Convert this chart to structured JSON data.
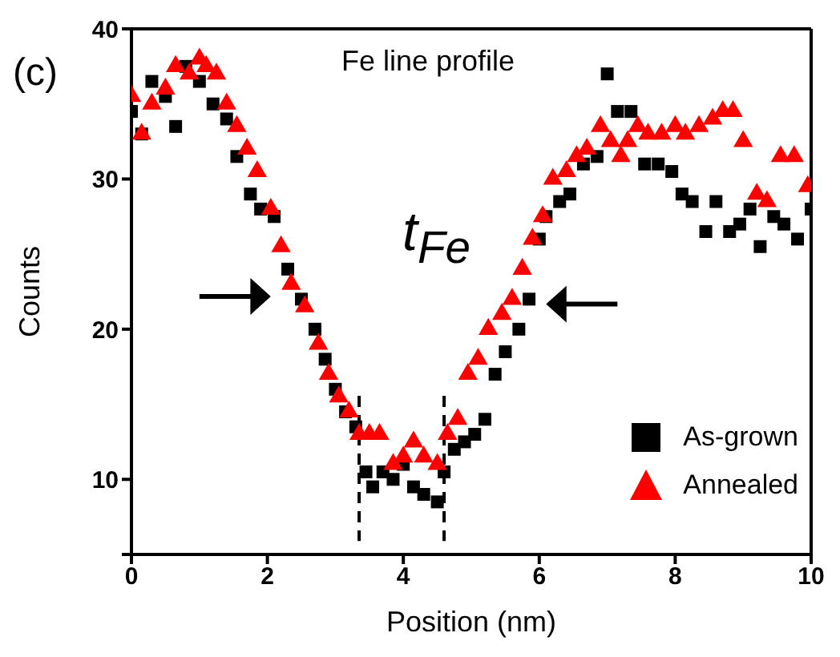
{
  "chart_data": {
    "type": "scatter",
    "xlabel": "Position (nm)",
    "ylabel": "Counts",
    "xlim": [
      0,
      10
    ],
    "ylim": [
      5,
      40
    ],
    "xticks": [
      0,
      2,
      4,
      6,
      8,
      10
    ],
    "yticks": [
      {
        "value": 5,
        "label": null
      },
      10,
      20,
      30,
      40
    ],
    "grid": false,
    "legend": "right",
    "annotations": [
      "(c)",
      "Fe line profile",
      "t$_{Fe}$"
    ],
    "series": [
      {
        "name": "As-grown",
        "color": "#000000",
        "marker": "square",
        "x": [
          0,
          0.15,
          0.3,
          0.5,
          0.65,
          0.8,
          1.0,
          1.2,
          1.4,
          1.55,
          1.75,
          1.9,
          2.1,
          2.3,
          2.5,
          2.7,
          2.85,
          3.0,
          3.15,
          3.3,
          3.45,
          3.55,
          3.7,
          3.85,
          4.0,
          4.15,
          4.3,
          4.5,
          4.6,
          4.75,
          4.9,
          5.05,
          5.2,
          5.35,
          5.5,
          5.7,
          5.85,
          6.0,
          6.1,
          6.3,
          6.45,
          6.65,
          6.85,
          7.0,
          7.15,
          7.35,
          7.55,
          7.75,
          7.95,
          8.1,
          8.25,
          8.45,
          8.6,
          8.8,
          8.95,
          9.1,
          9.25,
          9.45,
          9.6,
          9.8,
          10.0
        ],
        "values": [
          34.5,
          33,
          36.5,
          35.5,
          33.5,
          37.5,
          36.5,
          35,
          34,
          31.5,
          29,
          28,
          27.5,
          24,
          22,
          20,
          18,
          16,
          14.5,
          13.5,
          10.5,
          9.5,
          10.5,
          10,
          11,
          9.5,
          9,
          8.5,
          10.5,
          12,
          12.5,
          13,
          14,
          17,
          18.5,
          20,
          22,
          26,
          27.5,
          28.5,
          29,
          31,
          31.5,
          37,
          34.5,
          34.5,
          31,
          31,
          30.5,
          29,
          28.5,
          26.5,
          28.5,
          26.5,
          27,
          28,
          25.5,
          27.5,
          27,
          26,
          28
        ]
      },
      {
        "name": "Annealed",
        "color": "#ff0000",
        "marker": "triangle",
        "x": [
          0,
          0.15,
          0.3,
          0.5,
          0.65,
          0.85,
          1.0,
          1.1,
          1.25,
          1.4,
          1.55,
          1.7,
          1.85,
          2.05,
          2.2,
          2.35,
          2.55,
          2.75,
          2.9,
          3.05,
          3.2,
          3.35,
          3.5,
          3.65,
          3.85,
          4.0,
          4.15,
          4.3,
          4.5,
          4.65,
          4.8,
          4.95,
          5.1,
          5.25,
          5.45,
          5.6,
          5.75,
          5.9,
          6.05,
          6.2,
          6.4,
          6.55,
          6.7,
          6.9,
          7.05,
          7.2,
          7.3,
          7.45,
          7.6,
          7.8,
          8.0,
          8.15,
          8.35,
          8.55,
          8.7,
          8.85,
          9.0,
          9.2,
          9.35,
          9.55,
          9.75,
          9.95
        ],
        "values": [
          35.5,
          33,
          35,
          36,
          37.5,
          37,
          38,
          37.5,
          37,
          35,
          33.5,
          32,
          30.5,
          28,
          25.5,
          23,
          21.5,
          19,
          17,
          15.5,
          14.5,
          13,
          13,
          13,
          11,
          11.5,
          12.5,
          11.5,
          11,
          13,
          14,
          17,
          18,
          20,
          21,
          22,
          24,
          26,
          27.5,
          30,
          30.5,
          31.5,
          32,
          33.5,
          32.5,
          31.5,
          32.5,
          33.5,
          33,
          33,
          33.5,
          33,
          33.5,
          34,
          34.5,
          34.5,
          32.5,
          29,
          28.5,
          31.5,
          31.5,
          29.5
        ]
      }
    ]
  }
}
